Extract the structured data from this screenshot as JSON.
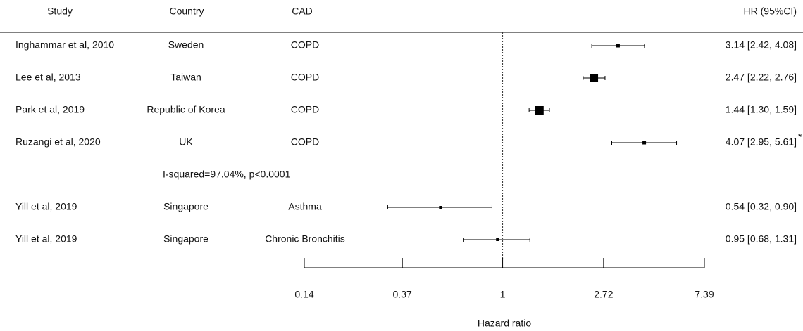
{
  "chart_data": {
    "type": "forest",
    "columns": [
      "Study",
      "Country",
      "CAD",
      "HR (95%CI)"
    ],
    "rows": [
      {
        "study": "Inghammar et al, 2010",
        "country": "Sweden",
        "cad": "COPD",
        "estimate": 3.14,
        "lower": 2.42,
        "upper": 4.08,
        "label": "3.14 [2.42, 4.08]",
        "marker_size": 5
      },
      {
        "study": "Lee et al, 2013",
        "country": "Taiwan",
        "cad": "COPD",
        "estimate": 2.47,
        "lower": 2.22,
        "upper": 2.76,
        "label": "2.47 [2.22, 2.76]",
        "marker_size": 12
      },
      {
        "study": "Park et al, 2019",
        "country": "Republic of Korea",
        "cad": "COPD",
        "estimate": 1.44,
        "lower": 1.3,
        "upper": 1.59,
        "label": "1.44 [1.30, 1.59]",
        "marker_size": 12
      },
      {
        "study": "Ruzangi et al, 2020",
        "country": "UK",
        "cad": "COPD",
        "estimate": 4.07,
        "lower": 2.95,
        "upper": 5.61,
        "label": "4.07 [2.95, 5.61]",
        "note": "*",
        "marker_size": 5
      },
      {
        "heterogeneity": "I-squared=97.04%, p<0.0001"
      },
      {
        "study": "Yill et al, 2019",
        "country": "Singapore",
        "cad": "Asthma",
        "estimate": 0.54,
        "lower": 0.32,
        "upper": 0.9,
        "label": "0.54 [0.32, 0.90]",
        "marker_size": 4
      },
      {
        "study": "Yill et al, 2019",
        "country": "Singapore",
        "cad": "Chronic Bronchitis",
        "estimate": 0.95,
        "lower": 0.68,
        "upper": 1.31,
        "label": "0.95 [0.68, 1.31]",
        "marker_size": 4
      }
    ],
    "log_x": true,
    "reference": 1,
    "xlim": [
      0.14,
      7.39
    ],
    "xticks": [
      0.14,
      0.37,
      1,
      2.72,
      7.39
    ],
    "xlabel": "Hazard ratio",
    "color": "#000000"
  }
}
